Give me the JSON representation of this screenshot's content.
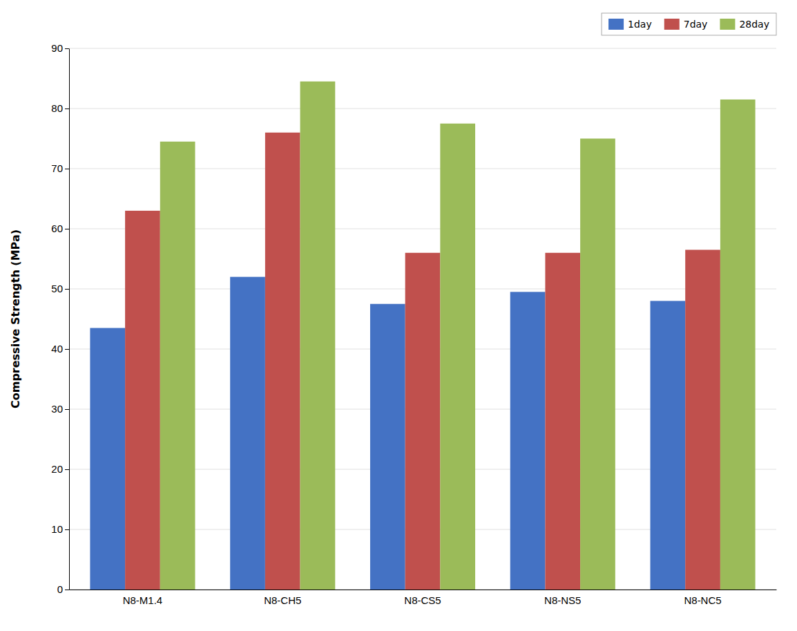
{
  "chart_data": {
    "type": "bar",
    "categories": [
      "N8-M1.4",
      "N8-CH5",
      "N8-CS5",
      "N8-NS5",
      "N8-NC5"
    ],
    "series": [
      {
        "name": "1day",
        "color": "#4472C4",
        "values": [
          43.5,
          52.0,
          47.5,
          49.5,
          48.0
        ]
      },
      {
        "name": "7day",
        "color": "#C0504D",
        "values": [
          63.0,
          76.0,
          56.0,
          56.0,
          56.5
        ]
      },
      {
        "name": "28day",
        "color": "#9BBB59",
        "values": [
          74.5,
          84.5,
          77.5,
          75.0,
          81.5
        ]
      }
    ],
    "ylabel": "Compressive Strength (MPa)",
    "ylim": [
      0,
      90
    ],
    "yticks": [
      0,
      10,
      20,
      30,
      40,
      50,
      60,
      70,
      80,
      90
    ],
    "grid": true,
    "legend": "upper right"
  }
}
